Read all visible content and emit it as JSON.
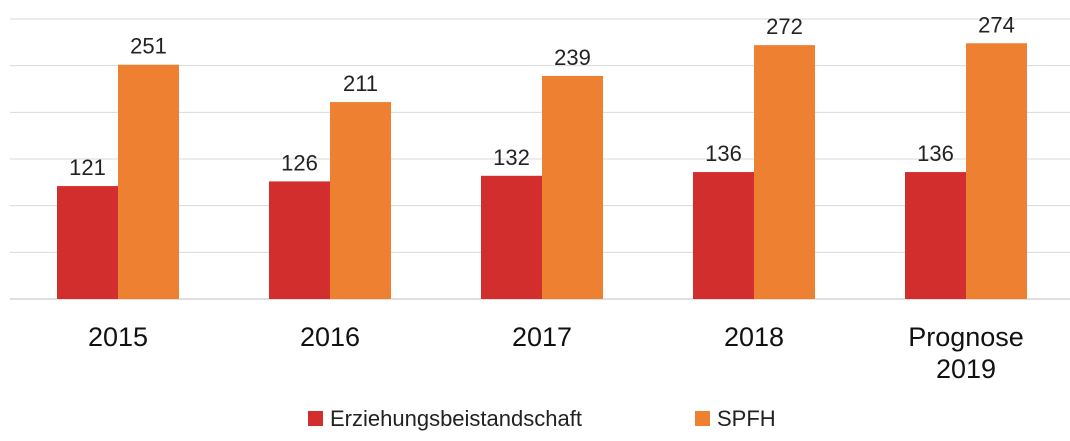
{
  "chart_data": {
    "type": "bar",
    "categories": [
      "2015",
      "2016",
      "2017",
      "2018",
      "Prognose 2019"
    ],
    "series": [
      {
        "name": "Erziehungsbeistandschaft",
        "color": "#d22e2e",
        "values": [
          121,
          126,
          132,
          136,
          136
        ]
      },
      {
        "name": "SPFH",
        "color": "#ee8031",
        "values": [
          251,
          211,
          239,
          272,
          274
        ]
      }
    ],
    "ylim": [
      0,
      300
    ],
    "yticks": [
      0,
      50,
      100,
      150,
      200,
      250,
      300
    ],
    "grid": true,
    "legend": "bottom"
  }
}
